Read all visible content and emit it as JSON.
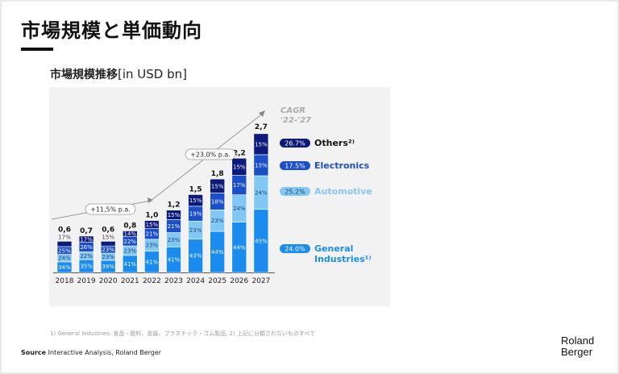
{
  "page": {
    "title": "市場規模と単価動向",
    "subtitle_jp": "市場規模推移",
    "subtitle_unit": "[in USD bn]",
    "footnote": "1) General Industries: 食品・飲料、金属、プラスチック・ゴム製品, 2) 上記に分類されないものすべて",
    "source_label": "Source",
    "source_text": "Interactive Analysis, Roland Berger",
    "logo_line1": "Roland",
    "logo_line2": "Berger"
  },
  "chart_data": {
    "type": "bar",
    "stacked": true,
    "title": "市場規模推移",
    "ylabel": "USD bn",
    "categories": [
      "2018",
      "2019",
      "2020",
      "2021",
      "2022",
      "2023",
      "2024",
      "2025",
      "2026",
      "2027"
    ],
    "totals": [
      0.6,
      0.7,
      0.6,
      0.8,
      1.0,
      1.2,
      1.5,
      1.8,
      2.2,
      2.7
    ],
    "total_labels": [
      "0,6",
      "0,7",
      "0,6",
      "0,8",
      "1,0",
      "1,2",
      "1,5",
      "1,8",
      "2,2",
      "2,7"
    ],
    "series": [
      {
        "name": "General Industries",
        "label": "General Industries¹⁾",
        "cagr": "24.0%",
        "color": "#1a8cf0",
        "text_color": "#1a8cf0",
        "share_pct": [
          34,
          35,
          39,
          41,
          41,
          41,
          43,
          44,
          44,
          45
        ]
      },
      {
        "name": "Automotive",
        "label": "Automotive",
        "cagr": "25.2%",
        "color": "#82c8f5",
        "text_color": "#82c8f5",
        "share_pct": [
          24,
          22,
          23,
          23,
          23,
          23,
          23,
          23,
          24,
          24
        ]
      },
      {
        "name": "Electronics",
        "label": "Electronics",
        "cagr": "17.5%",
        "color": "#1a4fc8",
        "text_color": "#1a4fc8",
        "share_pct": [
          25,
          26,
          23,
          22,
          21,
          21,
          19,
          18,
          17,
          15
        ]
      },
      {
        "name": "Others",
        "label": "Others²⁾",
        "cagr": "26.7%",
        "color": "#0c1a7a",
        "text_color": "#111111",
        "share_pct": [
          17,
          17,
          15,
          14,
          15,
          15,
          15,
          15,
          15,
          15
        ]
      }
    ],
    "outside_share_labels": {
      "0": "17%",
      "2": "15%"
    },
    "annotations": [
      {
        "text": "+11,5% p.a.",
        "period": "2018-2022"
      },
      {
        "text": "+23,0% p.a.",
        "period": "2022-2027"
      }
    ],
    "legend_title": "CAGR '22-'27",
    "legend_title_line1": "CAGR",
    "legend_title_line2": "'22-'27",
    "ylim": [
      0,
      3.0
    ],
    "grid": false,
    "legend_position": "right"
  }
}
